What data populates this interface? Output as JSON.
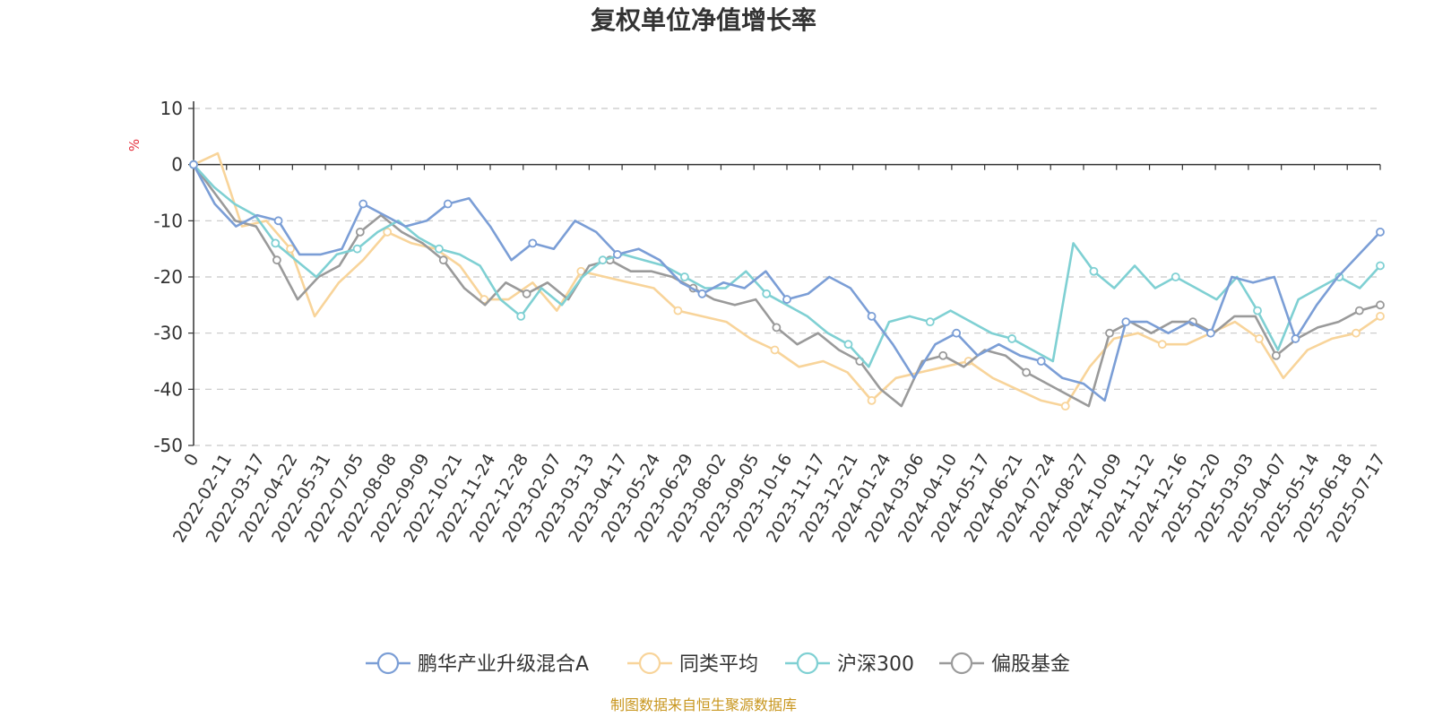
{
  "chart_data": {
    "type": "line",
    "title": "复权单位净值增长率",
    "ylabel": "%",
    "ylim": [
      -50,
      10
    ],
    "yticks": [
      10,
      0,
      -10,
      -20,
      -30,
      -40,
      -50
    ],
    "grid": true,
    "legend_position": "bottom",
    "x_tick_labels": [
      "0",
      "2022-02-11",
      "2022-03-17",
      "2022-04-22",
      "2022-05-31",
      "2022-07-05",
      "2022-08-08",
      "2022-09-09",
      "2022-10-21",
      "2022-11-24",
      "2022-12-28",
      "2023-02-07",
      "2023-03-13",
      "2023-04-17",
      "2023-05-24",
      "2023-06-29",
      "2023-08-02",
      "2023-09-05",
      "2023-10-16",
      "2023-11-17",
      "2023-12-21",
      "2024-01-24",
      "2024-03-06",
      "2024-04-10",
      "2024-05-17",
      "2024-06-21",
      "2024-07-24",
      "2024-08-27",
      "2024-10-09",
      "2024-11-12",
      "2024-12-16",
      "2025-01-20",
      "2025-03-03",
      "2025-04-07",
      "2025-05-14",
      "2025-06-18",
      "2025-07-17"
    ],
    "series": [
      {
        "name": "鹏华产业升级混合A",
        "color": "#7b9ed6",
        "values": [
          0,
          -7,
          -11,
          -9,
          -10,
          -16,
          -16,
          -15,
          -7,
          -9,
          -11,
          -10,
          -7,
          -6,
          -11,
          -17,
          -14,
          -15,
          -10,
          -12,
          -16,
          -15,
          -17,
          -21,
          -23,
          -21,
          -22,
          -19,
          -24,
          -23,
          -20,
          -22,
          -27,
          -32,
          -38,
          -32,
          -30,
          -34,
          -32,
          -34,
          -35,
          -38,
          -39,
          -42,
          -28,
          -28,
          -30,
          -28,
          -30,
          -20,
          -21,
          -20,
          -31,
          -25,
          -20,
          -16,
          -12
        ]
      },
      {
        "name": "同类平均",
        "color": "#f8d49a",
        "values": [
          0,
          2,
          -11,
          -10,
          -15,
          -27,
          -21,
          -17,
          -12,
          -14,
          -15,
          -18,
          -24,
          -24,
          -21,
          -26,
          -19,
          -20,
          -21,
          -22,
          -26,
          -27,
          -28,
          -31,
          -33,
          -36,
          -35,
          -37,
          -42,
          -38,
          -37,
          -36,
          -35,
          -38,
          -40,
          -42,
          -43,
          -36,
          -31,
          -30,
          -32,
          -32,
          -30,
          -28,
          -31,
          -38,
          -33,
          -31,
          -30,
          -27
        ]
      },
      {
        "name": "沪深300",
        "color": "#7fd0d3",
        "values": [
          0,
          -4,
          -7,
          -9,
          -14,
          -17,
          -20,
          -16,
          -15,
          -12,
          -10,
          -13,
          -15,
          -16,
          -18,
          -24,
          -27,
          -22,
          -25,
          -20,
          -17,
          -16,
          -17,
          -18,
          -20,
          -22,
          -22,
          -19,
          -23,
          -25,
          -27,
          -30,
          -32,
          -36,
          -28,
          -27,
          -28,
          -26,
          -28,
          -30,
          -31,
          -33,
          -35,
          -14,
          -19,
          -22,
          -18,
          -22,
          -20,
          -22,
          -24,
          -20,
          -26,
          -33,
          -24,
          -22,
          -20,
          -22,
          -18
        ]
      },
      {
        "name": "偏股基金",
        "color": "#9a9a9a",
        "values": [
          0,
          -5,
          -10,
          -11,
          -17,
          -24,
          -20,
          -18,
          -12,
          -9,
          -12,
          -14,
          -17,
          -22,
          -25,
          -21,
          -23,
          -21,
          -24,
          -18,
          -17,
          -19,
          -19,
          -20,
          -22,
          -24,
          -25,
          -24,
          -29,
          -32,
          -30,
          -33,
          -35,
          -40,
          -43,
          -35,
          -34,
          -36,
          -33,
          -34,
          -37,
          -39,
          -41,
          -43,
          -30,
          -28,
          -30,
          -28,
          -28,
          -30,
          -27,
          -27,
          -34,
          -31,
          -29,
          -28,
          -26,
          -25
        ]
      }
    ]
  },
  "legend": {
    "items": [
      "鹏华产业升级混合A",
      "同类平均",
      "沪深300",
      "偏股基金"
    ]
  },
  "footer": {
    "source": "制图数据来自恒生聚源数据库"
  }
}
